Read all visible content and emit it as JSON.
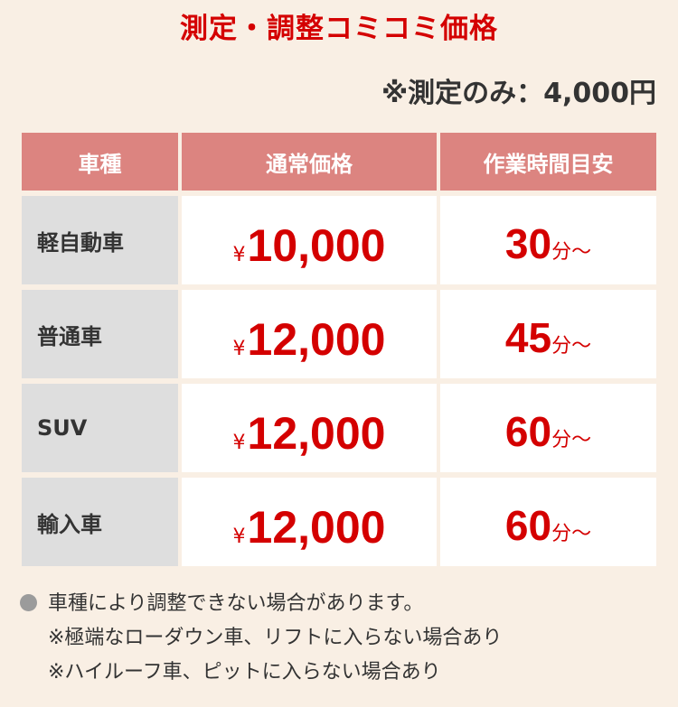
{
  "title": "測定・調整コミコミ価格",
  "subtitle": "※測定のみ：4,000円",
  "table": {
    "headers": [
      "車種",
      "通常価格",
      "作業時間目安"
    ],
    "currency": "¥",
    "time_unit": "分〜",
    "rows": [
      {
        "type": "軽自動車",
        "price": "10,000",
        "time": "30"
      },
      {
        "type": "普通車",
        "price": "12,000",
        "time": "45"
      },
      {
        "type": "SUV",
        "price": "12,000",
        "time": "60"
      },
      {
        "type": "輸入車",
        "price": "12,000",
        "time": "60"
      }
    ]
  },
  "notes": [
    "車種により調整できない場合があります。",
    "※極端なローダウン車、リフトに入らない場合あり",
    "※ハイルーフ車、ピットに入らない場合あり"
  ],
  "colors": {
    "accent": "#d40000",
    "header": "#dc8480",
    "background": "#f9efe4"
  }
}
